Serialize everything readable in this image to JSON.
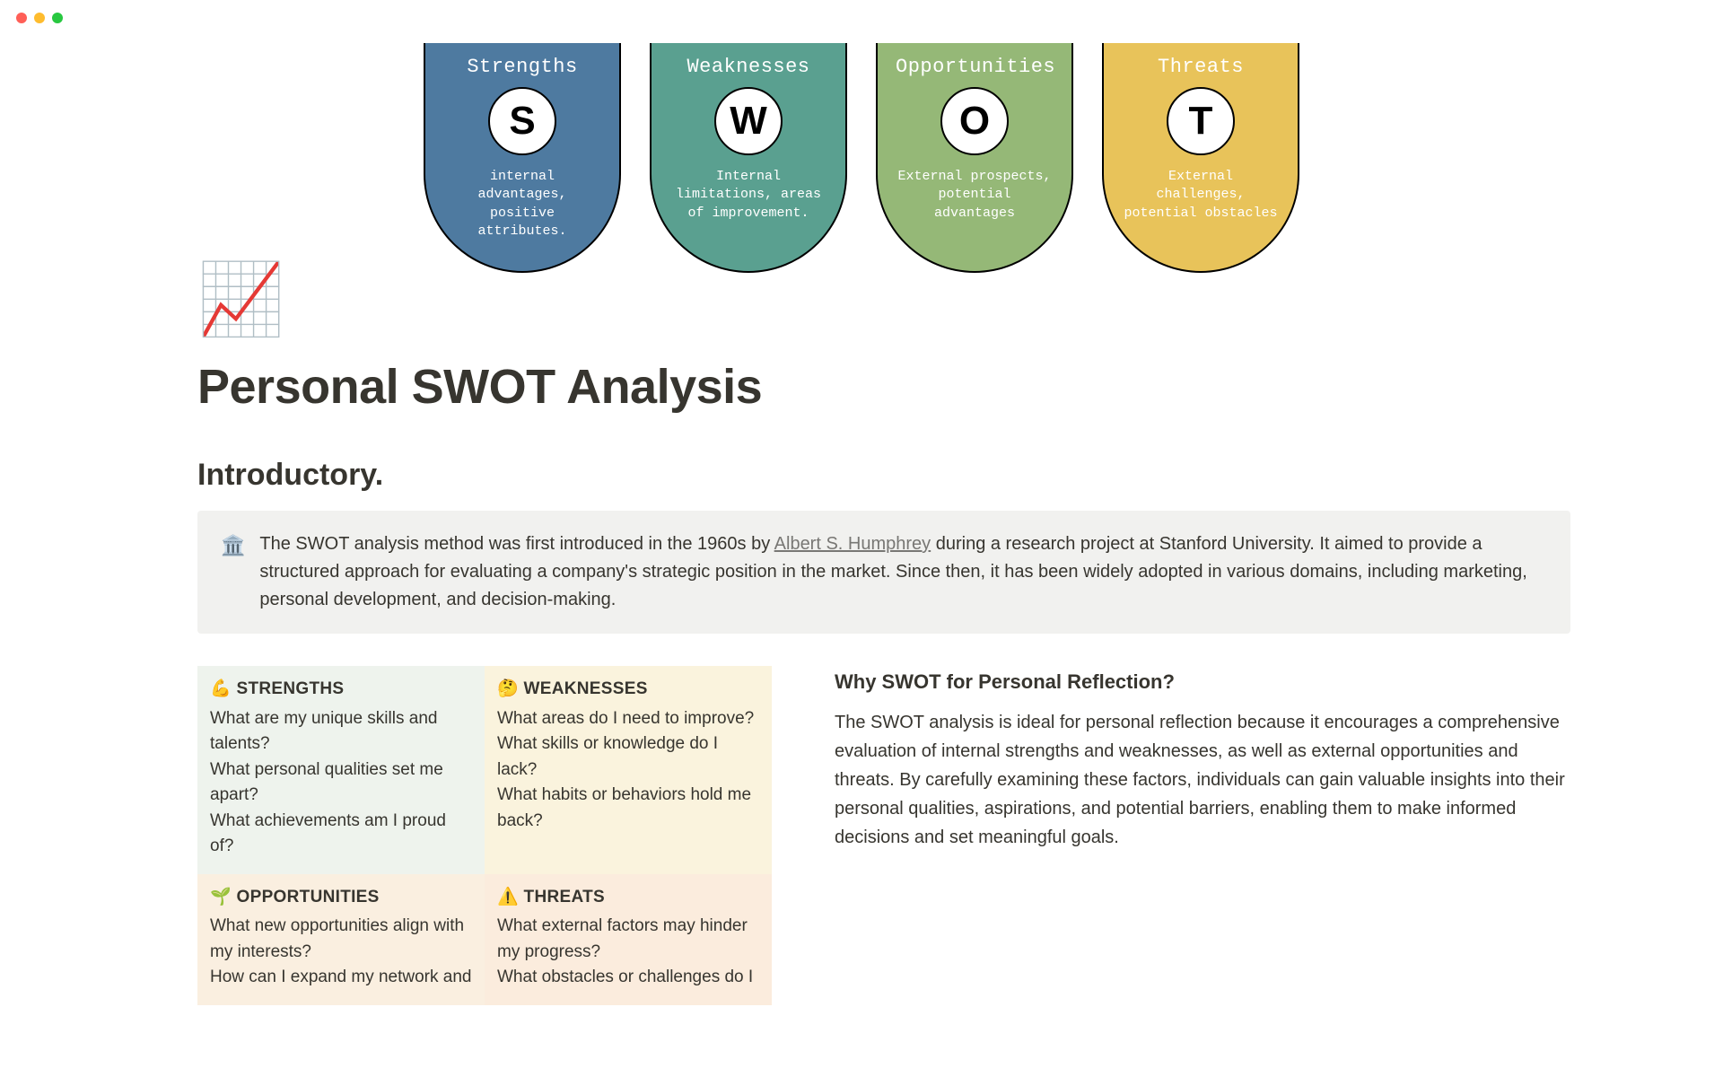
{
  "banner": {
    "cards": [
      {
        "title": "Strengths",
        "letter": "S",
        "desc": "internal advantages, positive attributes.",
        "bg": "#4e7aa0"
      },
      {
        "title": "Weaknesses",
        "letter": "W",
        "desc": "Internal limitations, areas of improvement.",
        "bg": "#5aa090"
      },
      {
        "title": "Opportunities",
        "letter": "O",
        "desc": "External prospects, potential advantages",
        "bg": "#95b877"
      },
      {
        "title": "Threats",
        "letter": "T",
        "desc": "External challenges, potential obstacles",
        "bg": "#e8c35a"
      }
    ]
  },
  "page": {
    "icon": "📈",
    "title": "Personal SWOT Analysis",
    "intro_heading": "Introductory."
  },
  "callout": {
    "icon": "🏛️",
    "text_before": "The SWOT analysis method was first introduced in the 1960s by ",
    "link_text": "Albert S. Humphrey",
    "text_after": " during a research project at Stanford University. It aimed to provide a structured approach for evaluating a company's strategic position in the market. Since then, it has been widely adopted in various domains, including marketing, personal development, and decision-making."
  },
  "grid": {
    "s": {
      "head": "💪 STRENGTHS",
      "lines": [
        "What are my unique skills and talents?",
        "What personal qualities set me apart?",
        "What achievements am I proud of?"
      ]
    },
    "w": {
      "head": "🤔 WEAKNESSES",
      "lines": [
        "What areas do I need to improve?",
        "What skills or knowledge do I lack?",
        "What habits or behaviors hold me back?"
      ]
    },
    "o": {
      "head": "🌱 OPPORTUNITIES",
      "lines": [
        "What new opportunities align with my interests?",
        "How can I expand my network and"
      ]
    },
    "t": {
      "head": "⚠️ THREATS",
      "lines": [
        "What external factors may hinder my progress?",
        "What obstacles or challenges do I"
      ]
    }
  },
  "reflection": {
    "heading": "Why SWOT for Personal Reflection?",
    "body": "The SWOT analysis is ideal for personal reflection because it encourages a comprehensive evaluation of internal strengths and weaknesses, as well as external opportunities and threats. By carefully examining these factors, individuals can gain valuable insights into their personal qualities, aspirations, and potential barriers, enabling them to make informed decisions and set meaningful goals."
  }
}
